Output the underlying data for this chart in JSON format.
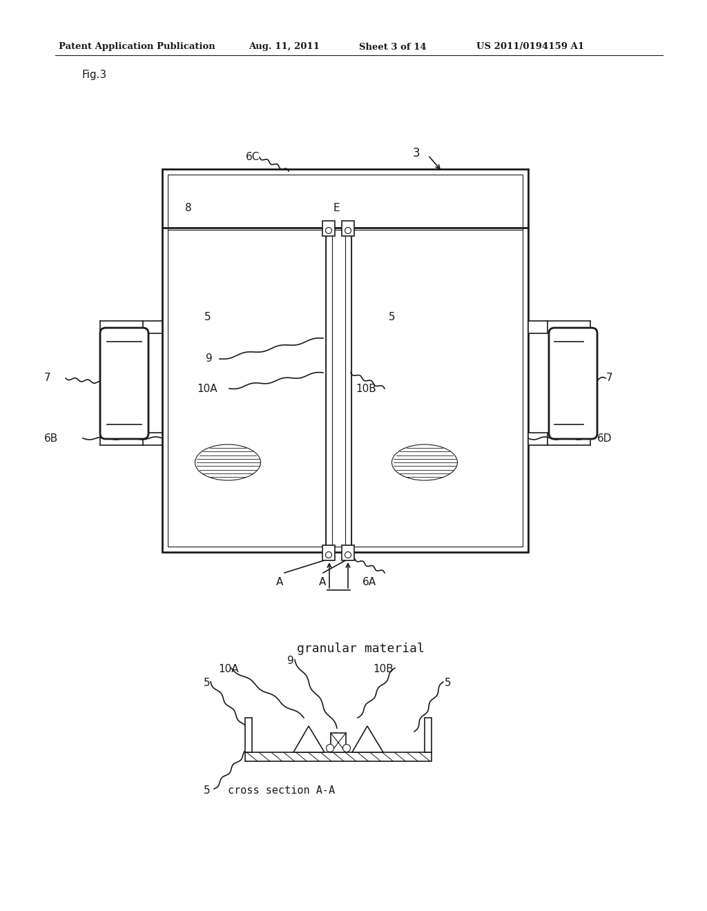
{
  "bg_color": "#ffffff",
  "line_color": "#1a1a1a",
  "header_text": "Patent Application Publication",
  "header_date": "Aug. 11, 2011",
  "header_sheet": "Sheet 3 of 14",
  "header_patent": "US 2011/0194159 A1",
  "fig_label": "Fig.3",
  "gm_label": "granular material",
  "cs_label": "cross section A-A"
}
